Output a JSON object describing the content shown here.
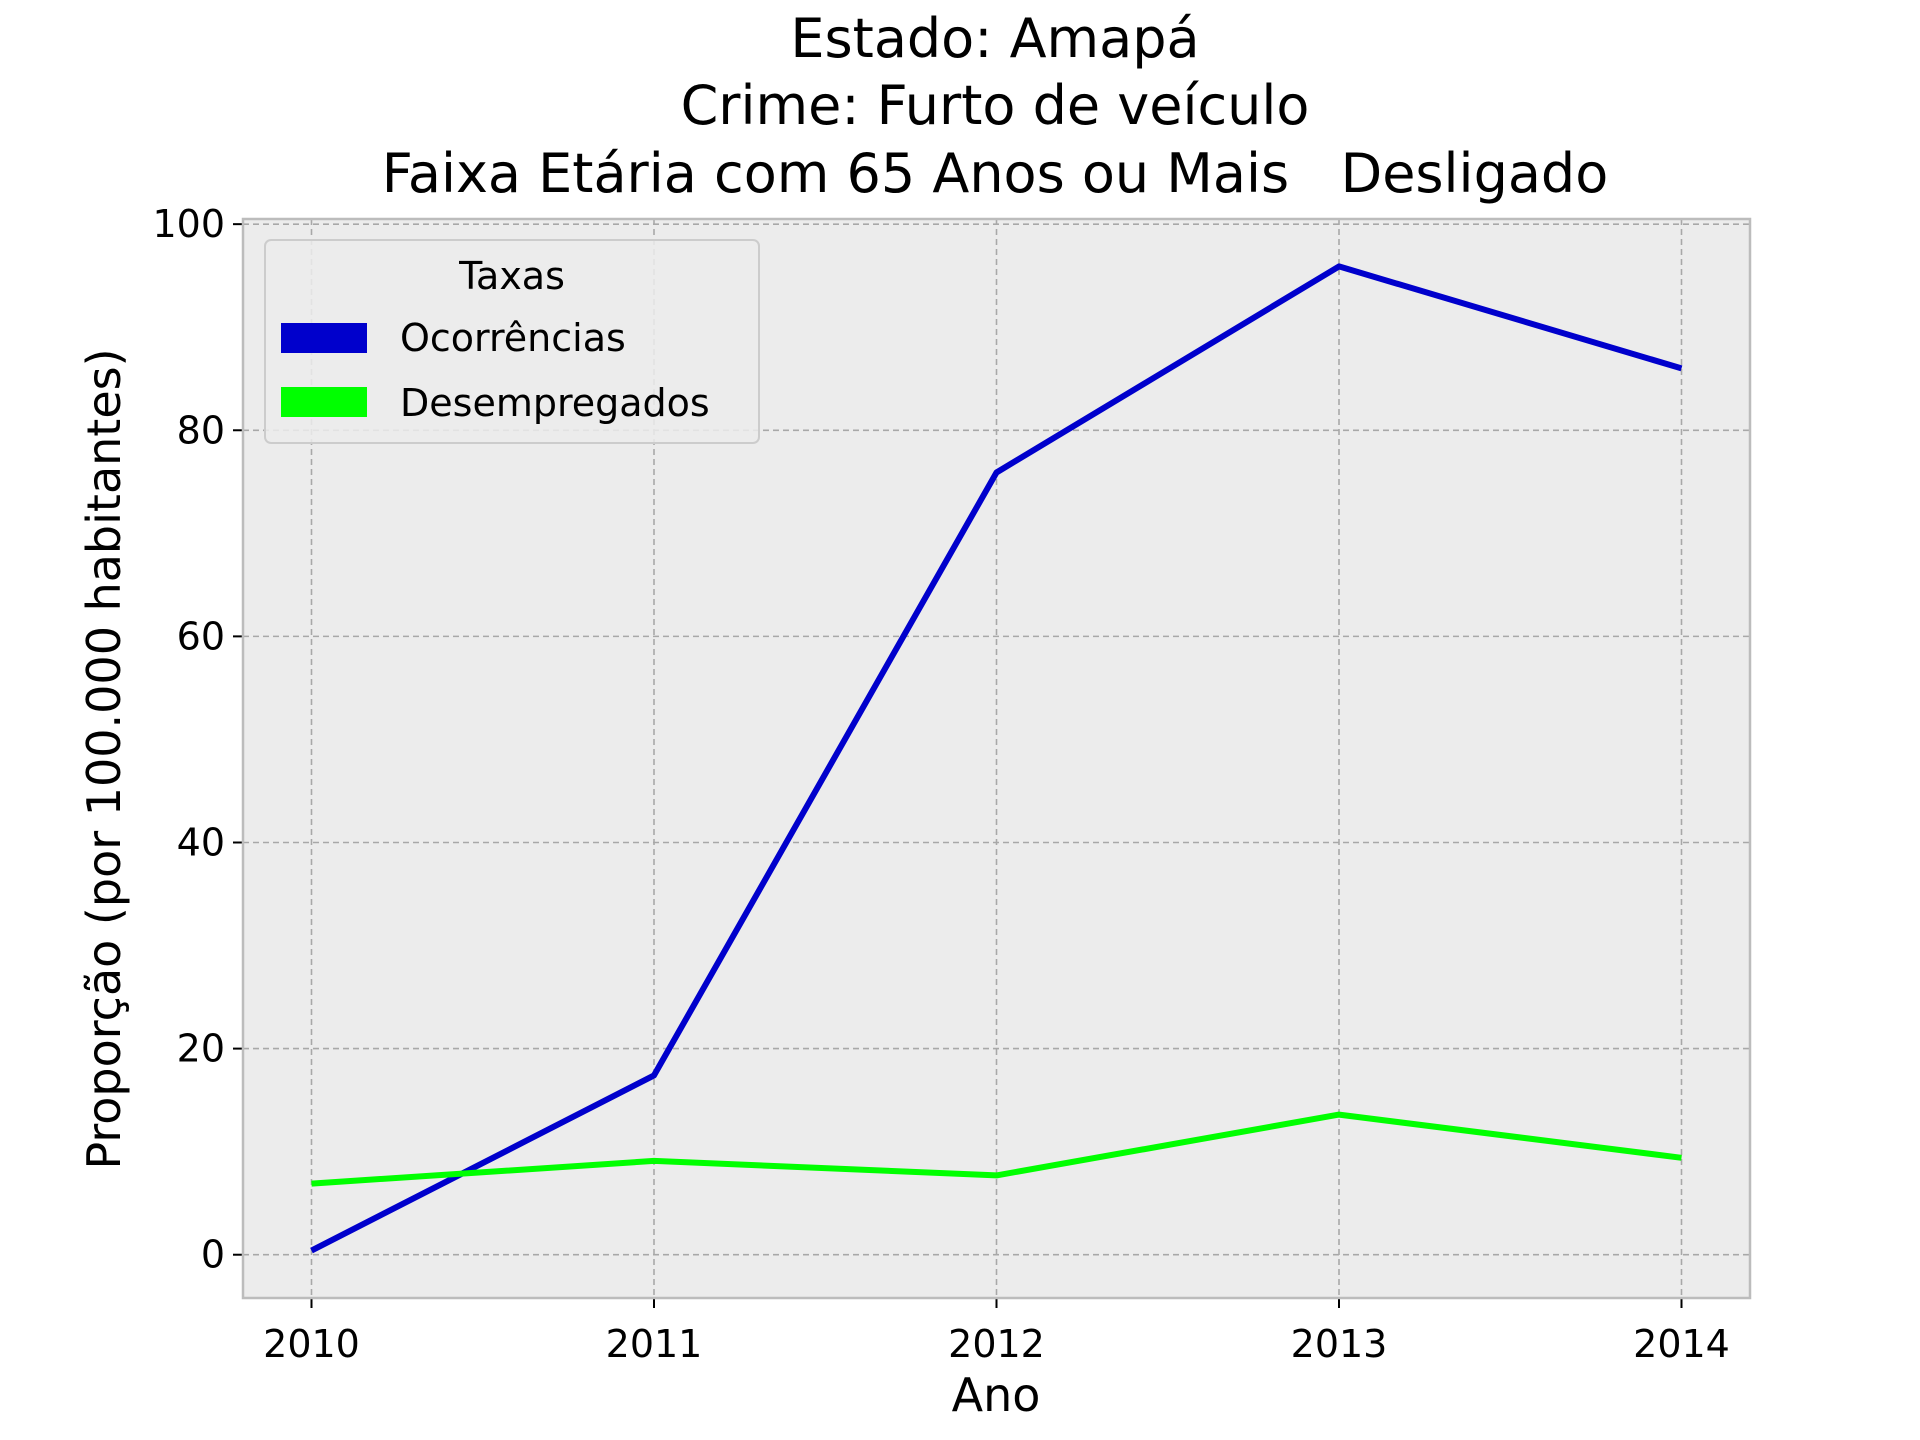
{
  "chart_data": {
    "type": "line",
    "title_lines": [
      "Estado: Amapá",
      "Crime: Furto de veículo",
      "Faixa Etária com 65 Anos ou Mais   Desligado"
    ],
    "xlabel": "Ano",
    "ylabel": "Proporção (por 100.000 habitantes)",
    "x": [
      2010,
      2011,
      2012,
      2013,
      2014
    ],
    "x_tick_labels": [
      "2010",
      "2011",
      "2012",
      "2013",
      "2014"
    ],
    "y_ticks": [
      0,
      20,
      40,
      60,
      80,
      100
    ],
    "y_tick_labels": [
      "0",
      "20",
      "40",
      "60",
      "80",
      "100"
    ],
    "xlim": [
      2009.8,
      2014.2
    ],
    "ylim": [
      -4.2,
      100.5
    ],
    "grid": true,
    "legend": {
      "title": "Taxas",
      "placement": "top-left"
    },
    "series": [
      {
        "name": "Ocorrências",
        "color": "#0000cc",
        "values": [
          0.4,
          17.4,
          75.9,
          95.9,
          86.0
        ]
      },
      {
        "name": "Desempregados",
        "color": "#00ff00",
        "values": [
          6.9,
          9.1,
          7.7,
          13.6,
          9.4
        ]
      }
    ]
  },
  "colors": {
    "plot_background": "#ececec",
    "grid": "#a8a8a8",
    "spine": "#bcbcbc"
  }
}
